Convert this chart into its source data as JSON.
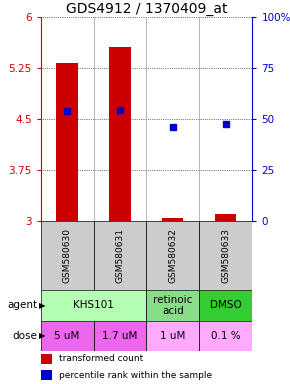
{
  "title": "GDS4912 / 1370409_at",
  "samples": [
    "GSM580630",
    "GSM580631",
    "GSM580632",
    "GSM580633"
  ],
  "bar_values": [
    5.32,
    5.56,
    3.04,
    3.1
  ],
  "blue_dot_values": [
    4.62,
    4.64,
    4.38,
    4.42
  ],
  "ylim_left": [
    3.0,
    6.0
  ],
  "yticks_left": [
    3.0,
    3.75,
    4.5,
    5.25,
    6.0
  ],
  "ytick_labels_left": [
    "3",
    "3.75",
    "4.5",
    "5.25",
    "6"
  ],
  "bar_color": "#cc0000",
  "dot_color": "#0000cc",
  "agent_data": [
    [
      0,
      2,
      "KHS101",
      "#b3ffb3"
    ],
    [
      2,
      3,
      "retinoic\nacid",
      "#88dd88"
    ],
    [
      3,
      4,
      "DMSO",
      "#33cc33"
    ]
  ],
  "dose_data": [
    [
      0,
      1,
      "5 uM",
      "#ee66ee"
    ],
    [
      1,
      2,
      "1.7 uM",
      "#ee66ee"
    ],
    [
      2,
      3,
      "1 uM",
      "#ffaaff"
    ],
    [
      3,
      4,
      "0.1 %",
      "#ffaaff"
    ]
  ],
  "sample_bg_color": "#cccccc",
  "legend_red": "transformed count",
  "legend_blue": "percentile rank within the sample",
  "title_fontsize": 10,
  "tick_fontsize": 7.5,
  "sample_fontsize": 6.5,
  "agent_fontsize": 7.5,
  "dose_fontsize": 7.5,
  "legend_fontsize": 6.5
}
